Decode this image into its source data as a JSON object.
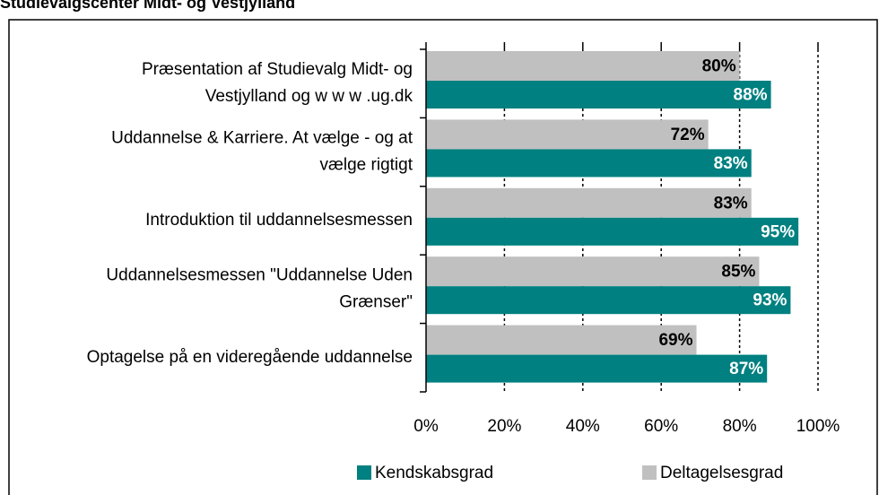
{
  "chart_data": {
    "type": "bar",
    "orientation": "horizontal",
    "title": "Studievalgscenter Midt- og Vestjylland",
    "categories": [
      "Præsentation af Studievalg Midt- og\nVestjylland og w w w .ug.dk",
      "Uddannelse & Karriere. At vælge - og at\nvælge rigtigt",
      "Introduktion til uddannelsesmessen",
      "Uddannelsesmessen \"Uddannelse Uden\nGrænser\"",
      "Optagelse på en videregående uddannelse"
    ],
    "series": [
      {
        "name": "Deltagelsesgrad",
        "color": "#c0c0c0",
        "label_color": "#000000",
        "values": [
          80,
          72,
          83,
          85,
          69
        ],
        "value_labels": [
          "80%",
          "72%",
          "83%",
          "85%",
          "69%"
        ]
      },
      {
        "name": "Kendskabsgrad",
        "color": "#008080",
        "label_color": "#ffffff",
        "values": [
          88,
          83,
          95,
          93,
          87
        ],
        "value_labels": [
          "88%",
          "83%",
          "95%",
          "93%",
          "87%"
        ]
      }
    ],
    "legend_order": [
      1,
      0
    ],
    "xlim": [
      0,
      100
    ],
    "xticks": [
      {
        "value": 0,
        "label": "0%"
      },
      {
        "value": 20,
        "label": "20%"
      },
      {
        "value": 40,
        "label": "40%"
      },
      {
        "value": 60,
        "label": "60%"
      },
      {
        "value": 80,
        "label": "80%"
      },
      {
        "value": 100,
        "label": "100%"
      }
    ],
    "grid": true
  }
}
